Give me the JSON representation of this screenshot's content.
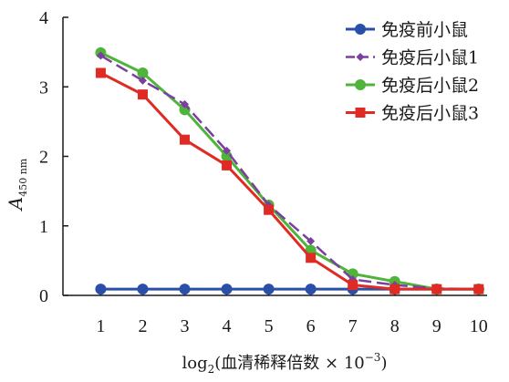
{
  "chart_data": {
    "type": "line",
    "x": [
      1,
      2,
      3,
      4,
      5,
      6,
      7,
      8,
      9,
      10
    ],
    "ylim": [
      0,
      4
    ],
    "xlim": [
      0.1,
      10.2
    ],
    "yticks": [
      0,
      1,
      2,
      3,
      4
    ],
    "xticks": [
      1,
      2,
      3,
      4,
      5,
      6,
      7,
      8,
      9,
      10
    ],
    "grid": false,
    "legend_position": "top-right",
    "ylabel": {
      "main": "A",
      "subscript": "450 nm"
    },
    "xlabel": {
      "prefix": "log",
      "subscript": "2",
      "text": "(血清稀释倍数 × 10",
      "superscript": "−3",
      "suffix": ")"
    },
    "series": [
      {
        "name": "免疫前小鼠",
        "color": "#2a4fa8",
        "marker": "circle",
        "dash": "solid",
        "values": [
          0.09,
          0.09,
          0.09,
          0.09,
          0.09,
          0.09,
          0.09,
          0.09,
          0.09,
          0.09
        ]
      },
      {
        "name": "免疫后小鼠1",
        "color": "#7b3fa0",
        "marker": "diamond",
        "dash": "dashed",
        "values": [
          3.45,
          3.09,
          2.75,
          2.08,
          1.3,
          0.78,
          0.23,
          0.15,
          0.1,
          0.09
        ]
      },
      {
        "name": "免疫后小鼠2",
        "color": "#4fb43a",
        "marker": "circle",
        "dash": "solid",
        "values": [
          3.49,
          3.2,
          2.67,
          2.0,
          1.3,
          0.65,
          0.31,
          0.2,
          0.09,
          0.09
        ]
      },
      {
        "name": "免疫后小鼠3",
        "color": "#e02b25",
        "marker": "square",
        "dash": "solid",
        "values": [
          3.2,
          2.89,
          2.24,
          1.87,
          1.23,
          0.54,
          0.15,
          0.09,
          0.09,
          0.09
        ]
      }
    ]
  }
}
